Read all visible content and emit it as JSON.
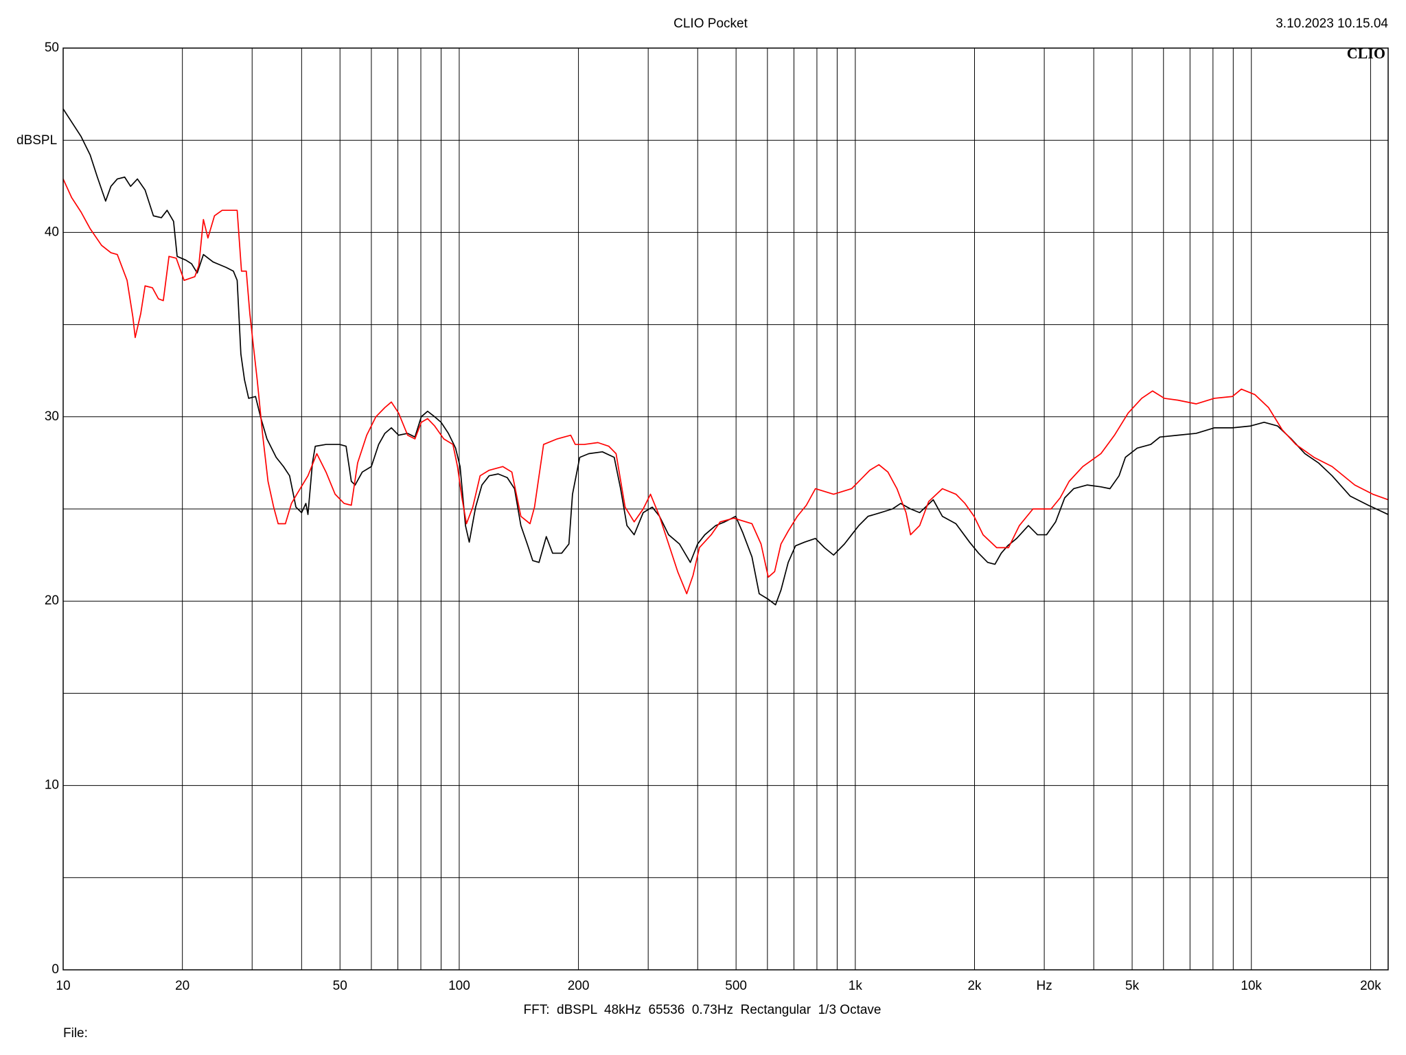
{
  "chart_data": {
    "type": "line",
    "title": "CLIO Pocket",
    "timestamp": "3.10.2023 10.15.04",
    "logo": "CLIO",
    "y_label": "dBSPL",
    "footer": "FFT:  dBSPL  48kHz  65536  0.73Hz  Rectangular  1/3 Octave",
    "file_label": "File:",
    "xscale": "log",
    "grid": true,
    "xlim": [
      10,
      22150
    ],
    "ylim": [
      0,
      50
    ],
    "xticks": [
      10,
      20,
      {
        "value": 30,
        "label": null
      },
      {
        "value": 40,
        "label": null
      },
      50,
      {
        "value": 60,
        "label": null
      },
      {
        "value": 70,
        "label": null
      },
      {
        "value": 80,
        "label": null
      },
      {
        "value": 90,
        "label": null
      },
      100,
      200,
      {
        "value": 300,
        "label": null
      },
      {
        "value": 400,
        "label": null
      },
      500,
      {
        "value": 600,
        "label": null
      },
      {
        "value": 700,
        "label": null
      },
      {
        "value": 800,
        "label": null
      },
      {
        "value": 900,
        "label": null
      },
      {
        "value": 1000,
        "label": "1k"
      },
      {
        "value": 2000,
        "label": "2k"
      },
      {
        "value": 3000,
        "label": "Hz"
      },
      {
        "value": 4000,
        "label": null
      },
      {
        "value": 5000,
        "label": "5k"
      },
      {
        "value": 6000,
        "label": null
      },
      {
        "value": 7000,
        "label": null
      },
      {
        "value": 8000,
        "label": null
      },
      {
        "value": 9000,
        "label": null
      },
      {
        "value": 10000,
        "label": "10k"
      },
      {
        "value": 20000,
        "label": "20k"
      }
    ],
    "yticks": [
      0,
      {
        "value": 5,
        "label": null
      },
      10,
      {
        "value": 15,
        "label": null
      },
      20,
      {
        "value": 25,
        "label": null
      },
      30,
      {
        "value": 35,
        "label": null
      },
      40,
      {
        "value": 45,
        "label": null
      },
      50
    ],
    "series": [
      {
        "color": "#000000",
        "x": [
          10,
          11.1,
          11.7,
          12.2,
          12.8,
          13.2,
          13.7,
          14.3,
          14.8,
          15.4,
          16.1,
          16.9,
          17.7,
          18.3,
          19.0,
          19.4,
          20.4,
          21.1,
          21.8,
          22.6,
          23.9,
          25.8,
          26.9,
          27.5,
          28.1,
          28.7,
          29.4,
          30.6,
          31.5,
          32.7,
          34.5,
          36.0,
          37.3,
          38.7,
          40.0,
          41.0,
          41.5,
          42.6,
          43.3,
          46.1,
          49.9,
          51.8,
          53.4,
          54.6,
          56.9,
          60.0,
          62.6,
          64.9,
          67.4,
          70.3,
          74.1,
          77.3,
          80.2,
          83.2,
          86.7,
          90.0,
          93.9,
          97.9,
          100.5,
          103.7,
          106.0,
          110.0,
          114.1,
          119.0,
          125.4,
          132.2,
          137.9,
          143.1,
          148.5,
          153.3,
          159.0,
          165.9,
          172.1,
          181.4,
          189.2,
          193.2,
          201.5,
          212.4,
          229.9,
          246.2,
          255.5,
          265.1,
          276.5,
          291.4,
          307.2,
          320.4,
          337.8,
          359.8,
          383.3,
          399.8,
          417.0,
          444.2,
          468.2,
          498.8,
          520.2,
          548.4,
          572.0,
          603.0,
          628.9,
          649.2,
          677.1,
          706.3,
          744.5,
          793.1,
          836.0,
          881.4,
          939,
          979,
          1021,
          1077,
          1159,
          1241,
          1302,
          1379,
          1454,
          1573,
          1659,
          1795,
          1943,
          2048,
          2159,
          2252,
          2336,
          2424,
          2555,
          2736,
          2884,
          3040,
          3205,
          3378,
          3560,
          3853,
          4170,
          4395,
          4634,
          4808,
          5149,
          5572,
          5876,
          6525,
          7253,
          8060,
          8954,
          9950,
          10770,
          11650,
          12610,
          13650,
          14770,
          15990,
          17760,
          19740,
          22150
        ],
        "values": [
          46.7,
          45.2,
          44.2,
          43.0,
          41.7,
          42.5,
          42.9,
          43.0,
          42.5,
          42.9,
          42.3,
          40.9,
          40.8,
          41.2,
          40.6,
          38.7,
          38.5,
          38.3,
          37.8,
          38.8,
          38.4,
          38.1,
          37.9,
          37.4,
          33.4,
          32.0,
          31.0,
          31.1,
          30.0,
          28.8,
          27.8,
          27.3,
          26.8,
          25.1,
          24.8,
          25.3,
          24.7,
          27.5,
          28.4,
          28.5,
          28.5,
          28.4,
          26.5,
          26.3,
          27.0,
          27.3,
          28.5,
          29.1,
          29.4,
          29.0,
          29.1,
          28.9,
          30.0,
          30.3,
          30.0,
          29.7,
          29.1,
          28.3,
          27.3,
          24.1,
          23.2,
          25.1,
          26.3,
          26.8,
          26.9,
          26.7,
          26.1,
          24.1,
          23.1,
          22.2,
          22.1,
          23.5,
          22.6,
          22.6,
          23.1,
          25.8,
          27.8,
          28.0,
          28.1,
          27.8,
          26.1,
          24.1,
          23.6,
          24.8,
          25.1,
          24.6,
          23.6,
          23.1,
          22.1,
          23.1,
          23.6,
          24.1,
          24.3,
          24.6,
          23.7,
          22.4,
          20.4,
          20.1,
          19.8,
          20.6,
          22.1,
          23.0,
          23.2,
          23.4,
          22.9,
          22.5,
          23.1,
          23.6,
          24.1,
          24.6,
          24.8,
          25.0,
          25.3,
          25.0,
          24.8,
          25.5,
          24.6,
          24.2,
          23.2,
          22.6,
          22.1,
          22.0,
          22.6,
          23.0,
          23.4,
          24.1,
          23.6,
          23.6,
          24.3,
          25.6,
          26.1,
          26.3,
          26.2,
          26.1,
          26.8,
          27.8,
          28.3,
          28.5,
          28.9,
          29.0,
          29.1,
          29.4,
          29.4,
          29.5,
          29.7,
          29.5,
          28.8,
          28.0,
          27.5,
          26.8,
          25.7,
          25.2,
          24.7
        ]
      },
      {
        "color": "#ff0000",
        "x": [
          10,
          10.5,
          11.1,
          11.7,
          12.5,
          13.2,
          13.7,
          14.5,
          15.0,
          15.2,
          15.7,
          16.1,
          16.8,
          17.4,
          17.9,
          18.5,
          19.3,
          20.2,
          21.5,
          22.0,
          22.6,
          23.2,
          24.1,
          25.2,
          26.5,
          27.5,
          28.2,
          29.0,
          29.6,
          30.2,
          30.9,
          31.9,
          32.9,
          34.0,
          34.9,
          36.4,
          37.7,
          38.9,
          41.5,
          43.7,
          46.1,
          48.6,
          51.2,
          53.4,
          55.4,
          58.4,
          61.6,
          64.9,
          67.4,
          70.3,
          74.1,
          77.3,
          80.2,
          83.2,
          86.7,
          91.4,
          96.4,
          99.0,
          101.6,
          104.3,
          108.2,
          112.9,
          119.0,
          128.8,
          135.8,
          143.1,
          150.9,
          154.9,
          163.3,
          176.7,
          191.2,
          196.3,
          206.9,
          223.9,
          238.6,
          248.9,
          262.3,
          276.5,
          291.4,
          304.0,
          320.4,
          337.8,
          356.1,
          375.3,
          389.4,
          404.0,
          432.7,
          456.0,
          493.5,
          548.4,
          578.1,
          603.0,
          625.6,
          649.2,
          677.1,
          713.8,
          752.4,
          793.1,
          881.4,
          979,
          1032,
          1088,
          1147,
          1209,
          1274,
          1343,
          1379,
          1454,
          1532,
          1659,
          1795,
          1892,
          1995,
          2102,
          2275,
          2437,
          2596,
          2809,
          3122,
          3290,
          3467,
          3753,
          4170,
          4512,
          4885,
          5286,
          5631,
          6031,
          6525,
          7253,
          8060,
          8954,
          9436,
          10210,
          11050,
          11960,
          12950,
          14390,
          15990,
          18240,
          20260,
          22150
        ],
        "values": [
          42.9,
          41.9,
          41.1,
          40.2,
          39.3,
          38.9,
          38.8,
          37.4,
          35.4,
          34.3,
          35.6,
          37.1,
          37.0,
          36.4,
          36.3,
          38.7,
          38.6,
          37.4,
          37.6,
          38.2,
          40.7,
          39.7,
          40.9,
          41.2,
          41.2,
          41.2,
          37.9,
          37.9,
          35.6,
          33.9,
          32.0,
          29.0,
          26.5,
          25.1,
          24.2,
          24.2,
          25.3,
          25.8,
          26.8,
          28.0,
          27.0,
          25.8,
          25.3,
          25.2,
          27.5,
          29.0,
          30.0,
          30.5,
          30.8,
          30.2,
          29.0,
          28.8,
          29.7,
          29.9,
          29.5,
          28.8,
          28.5,
          27.3,
          25.6,
          24.2,
          25.1,
          26.8,
          27.1,
          27.3,
          27.0,
          24.6,
          24.2,
          25.1,
          28.5,
          28.8,
          29.0,
          28.5,
          28.5,
          28.6,
          28.4,
          28.0,
          25.1,
          24.3,
          25.0,
          25.8,
          24.6,
          23.1,
          21.6,
          20.4,
          21.4,
          22.9,
          23.6,
          24.3,
          24.5,
          24.2,
          23.1,
          21.3,
          21.6,
          23.1,
          23.8,
          24.6,
          25.2,
          26.1,
          25.8,
          26.1,
          26.6,
          27.1,
          27.4,
          27.0,
          26.1,
          24.8,
          23.6,
          24.1,
          25.4,
          26.1,
          25.8,
          25.3,
          24.6,
          23.6,
          22.9,
          22.9,
          24.1,
          25.0,
          25.0,
          25.6,
          26.5,
          27.3,
          28.0,
          29.0,
          30.2,
          31.0,
          31.4,
          31.0,
          30.9,
          30.7,
          31.0,
          31.1,
          31.5,
          31.2,
          30.5,
          29.3,
          28.5,
          27.8,
          27.3,
          26.3,
          25.8,
          25.5
        ]
      }
    ]
  }
}
